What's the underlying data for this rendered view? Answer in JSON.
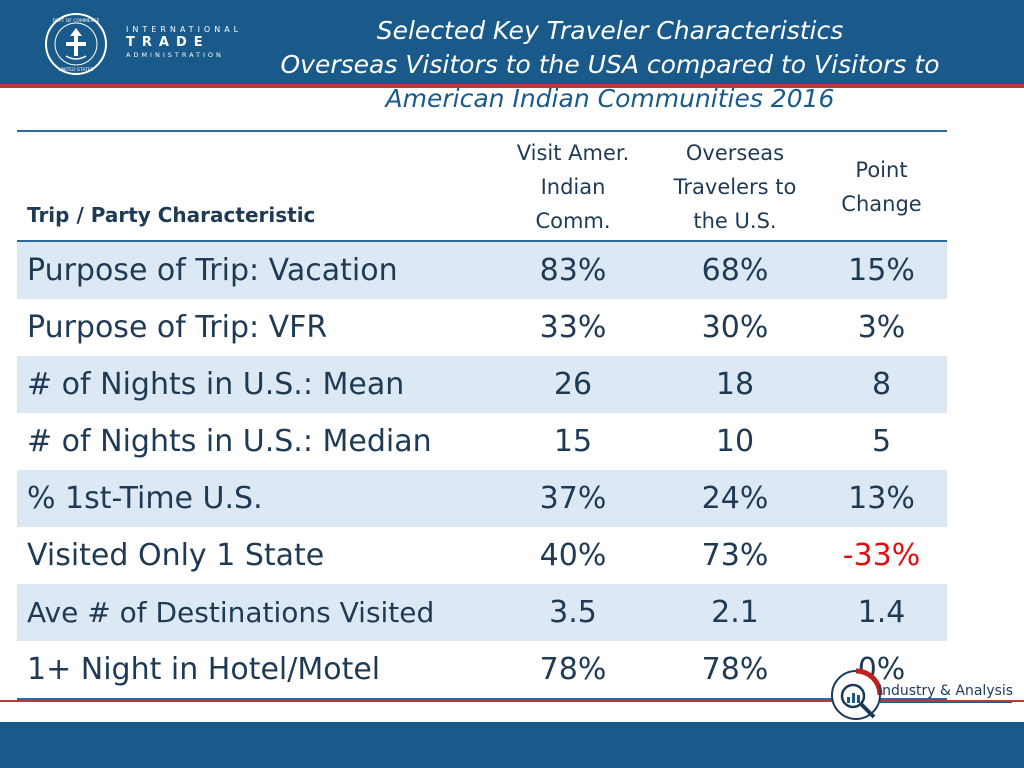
{
  "header": {
    "logo": {
      "line1": "INTERNATIONAL",
      "line2": "TRADE",
      "line3": "ADMINISTRATION",
      "seal_text": "DEPARTMENT OF COMMERCE · UNITED STATES OF AMERICA"
    },
    "title_line1": "Selected Key Traveler Characteristics",
    "title_line2": "Overseas Visitors to the USA compared to Visitors to",
    "title_line3": "American Indian Communities 2016"
  },
  "table": {
    "headers": {
      "label": "Trip / Party Characteristic",
      "col1": [
        "Visit Amer.",
        "Indian",
        "Comm."
      ],
      "col2": [
        "Overseas",
        "Travelers to",
        "the U.S."
      ],
      "col3": [
        "Point",
        "Change"
      ]
    },
    "rows": [
      {
        "label": "Purpose of Trip:  Vacation",
        "aic": "83%",
        "overseas": "68%",
        "change": "15%"
      },
      {
        "label": "Purpose of Trip:  VFR",
        "aic": "33%",
        "overseas": "30%",
        "change": "3%"
      },
      {
        "label": "# of Nights in U.S.: Mean",
        "aic": "26",
        "overseas": "18",
        "change": "8"
      },
      {
        "label": "# of Nights in U.S.: Median",
        "aic": "15",
        "overseas": "10",
        "change": "5"
      },
      {
        "label": "% 1st-Time U.S.",
        "aic": "37%",
        "overseas": "24%",
        "change": "13%"
      },
      {
        "label": "Visited Only 1 State",
        "aic": "40%",
        "overseas": "73%",
        "change": "-33%"
      },
      {
        "label": "Ave # of Destinations Visited",
        "aic": "3.5",
        "overseas": "2.1",
        "change": "1.4"
      },
      {
        "label": "1+ Night in Hotel/Motel",
        "aic": "78%",
        "overseas": "78%",
        "change": "0%"
      }
    ]
  },
  "footer": {
    "ia_label": "Industry & Analysis"
  },
  "colors": {
    "header_blue": "#1a5a8a",
    "accent_red": "#b83a3a",
    "row_shade": "#dce9f4",
    "negative": "#e01010"
  }
}
